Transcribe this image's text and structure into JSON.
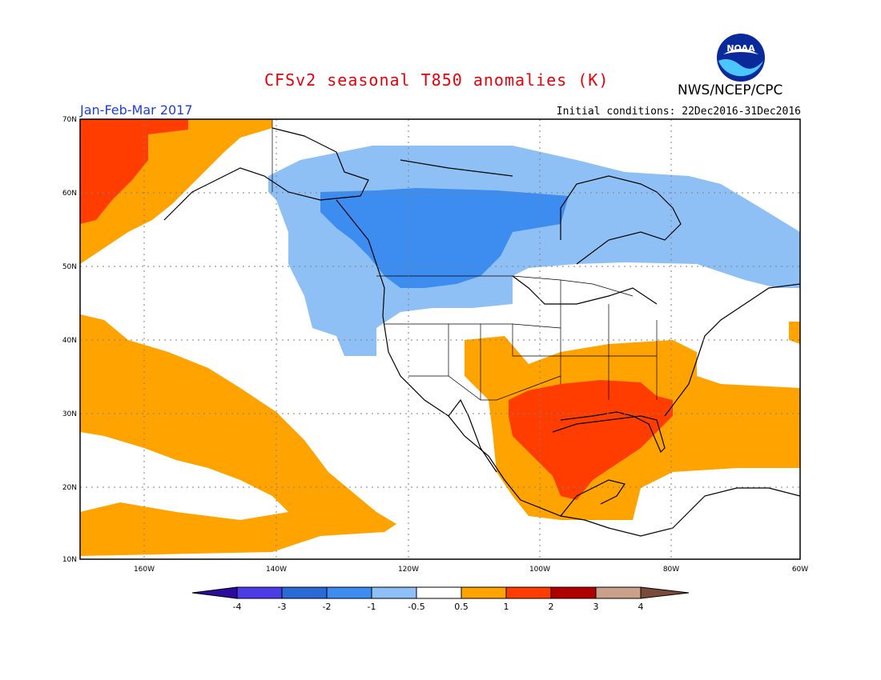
{
  "header": {
    "title": "CFSv2 seasonal T850 anomalies (K)",
    "agency": "NWS/NCEP/CPC",
    "period": "Jan-Feb-Mar 2017",
    "initial_conditions": "Initial conditions: 22Dec2016-31Dec2016",
    "logo_text": "NOAA"
  },
  "map": {
    "lat_labels": [
      "70N",
      "60N",
      "50N",
      "40N",
      "30N",
      "20N",
      "10N"
    ],
    "lon_labels": [
      "160W",
      "140W",
      "120W",
      "100W",
      "80W",
      "60W"
    ]
  },
  "legend": {
    "colors": [
      "#2b0b9e",
      "#4c3ce8",
      "#2a6ad8",
      "#3d8cf0",
      "#8fc0f5",
      "#ffffff",
      "#ffa300",
      "#ff3d00",
      "#b00000",
      "#caa08a",
      "#7a4b3a"
    ],
    "labels": [
      "-4",
      "-3",
      "-2",
      "-1",
      "-0.5",
      "0.5",
      "1",
      "2",
      "3",
      "4"
    ]
  },
  "palette": {
    "orange": "#ffa300",
    "red": "#ff3d00",
    "light_blue": "#8fc0f5",
    "mid_blue": "#3d8cf0",
    "title_red": "#e8000b",
    "period_blue": "#1d3fd6"
  }
}
